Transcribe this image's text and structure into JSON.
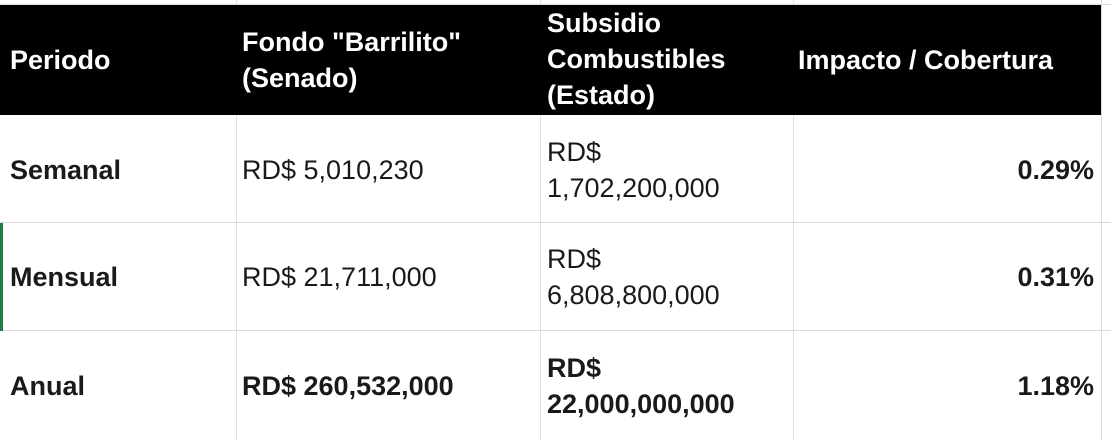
{
  "table": {
    "headers": {
      "periodo": "Periodo",
      "fondo_line1": "Fondo \"Barrilito\"",
      "fondo_line2": "(Senado)",
      "subsidio_line1": "Subsidio",
      "subsidio_line2": "Combustibles",
      "subsidio_line3": "(Estado)",
      "impacto": "Impacto / Cobertura"
    },
    "rows": [
      {
        "periodo": "Semanal",
        "fondo": "RD$ 5,010,230",
        "subsidio_line1": "RD$",
        "subsidio_line2": "1,702,200,000",
        "impacto": "0.29%"
      },
      {
        "periodo": "Mensual",
        "fondo": "RD$ 21,711,000",
        "subsidio_line1": "RD$",
        "subsidio_line2": "6,808,800,000",
        "impacto": "0.31%"
      },
      {
        "periodo": "Anual",
        "fondo": "RD$ 260,532,000",
        "subsidio_line1": "RD$",
        "subsidio_line2": "22,000,000,000",
        "impacto": "1.18%"
      }
    ]
  }
}
